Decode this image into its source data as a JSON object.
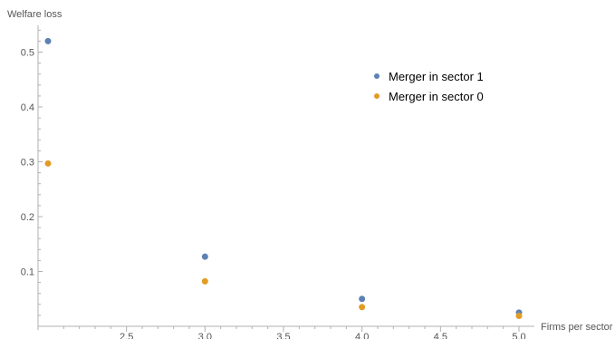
{
  "chart_data": {
    "type": "scatter",
    "xlabel": "Firms per sector",
    "ylabel": "Welfare loss",
    "xlim": [
      2.0,
      5.0
    ],
    "ylim": [
      0.0,
      0.55
    ],
    "x_tick_labels": [
      "2.5",
      "3.0",
      "3.5",
      "4.0",
      "4.5",
      "5.0"
    ],
    "y_tick_labels": [
      "0.1",
      "0.2",
      "0.3",
      "0.4",
      "0.5"
    ],
    "legend_position": "top-right",
    "series": [
      {
        "name": "Merger in sector 1",
        "color": "#5e81b5",
        "x": [
          2,
          3,
          4,
          5
        ],
        "y": [
          0.52,
          0.127,
          0.05,
          0.025
        ]
      },
      {
        "name": "Merger in sector 0",
        "color": "#e19c24",
        "x": [
          2,
          3,
          4,
          5
        ],
        "y": [
          0.297,
          0.082,
          0.035,
          0.019
        ]
      }
    ]
  }
}
